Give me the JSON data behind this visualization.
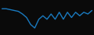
{
  "x": [
    0,
    1,
    2,
    3,
    4,
    5,
    6,
    7,
    8,
    9,
    10,
    11,
    12,
    13,
    14,
    15,
    16,
    17,
    18,
    19,
    20,
    21,
    22
  ],
  "y": [
    20,
    20,
    19.5,
    19,
    18.5,
    17,
    15,
    11,
    9,
    14,
    16,
    14,
    17,
    14,
    18,
    14,
    18,
    15,
    18,
    16,
    18,
    17,
    19
  ],
  "line_color": "#1a7abf",
  "linewidth": 1.0,
  "background_color": "#0a0a0a",
  "ylim": [
    5,
    25
  ],
  "xlim": [
    -0.5,
    22.5
  ]
}
